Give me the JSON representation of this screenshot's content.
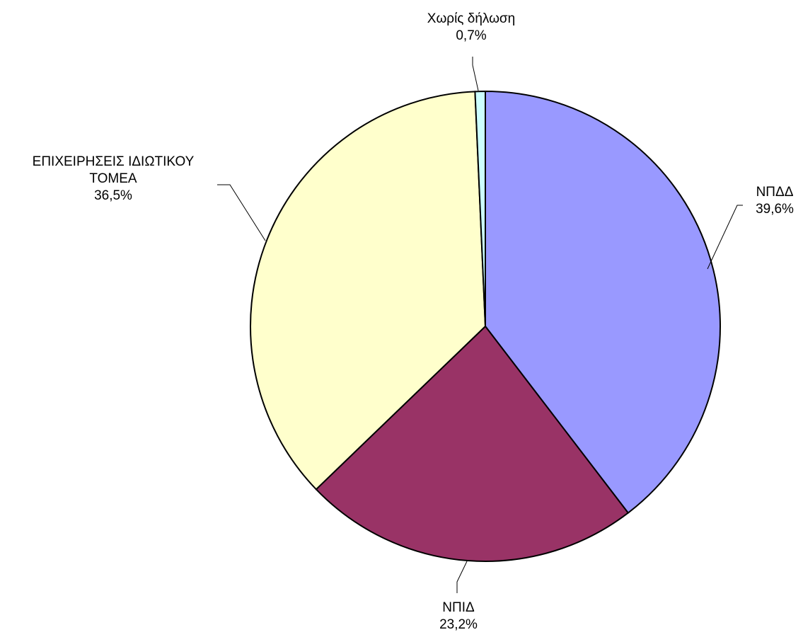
{
  "chart_data": {
    "type": "pie",
    "title": "",
    "start_angle_deg": 0,
    "direction": "clockwise",
    "slices": [
      {
        "name": "ΝΠΔΔ",
        "value": 39.6,
        "label_lines": [
          "ΝΠΔΔ"
        ],
        "value_text": "39,6%",
        "color": "#9999ff"
      },
      {
        "name": "ΝΠΙΔ",
        "value": 23.2,
        "label_lines": [
          "ΝΠΙΔ"
        ],
        "value_text": "23,2%",
        "color": "#993366"
      },
      {
        "name": "ΕΠΙΧΕΙΡΗΣΕΙΣ ΙΔΙΩΤΙΚΟΥ ΤΟΜΕΑ",
        "value": 36.5,
        "label_lines": [
          "ΕΠΙΧΕΙΡΗΣΕΙΣ ΙΔΙΩΤΙΚΟΥ",
          "ΤΟΜΕΑ"
        ],
        "value_text": "36,5%",
        "color": "#ffffcc"
      },
      {
        "name": "Χωρίς δήλωση",
        "value": 0.7,
        "label_lines": [
          "Χωρίς δήλωση"
        ],
        "value_text": "0,7%",
        "color": "#ccffff"
      }
    ]
  }
}
